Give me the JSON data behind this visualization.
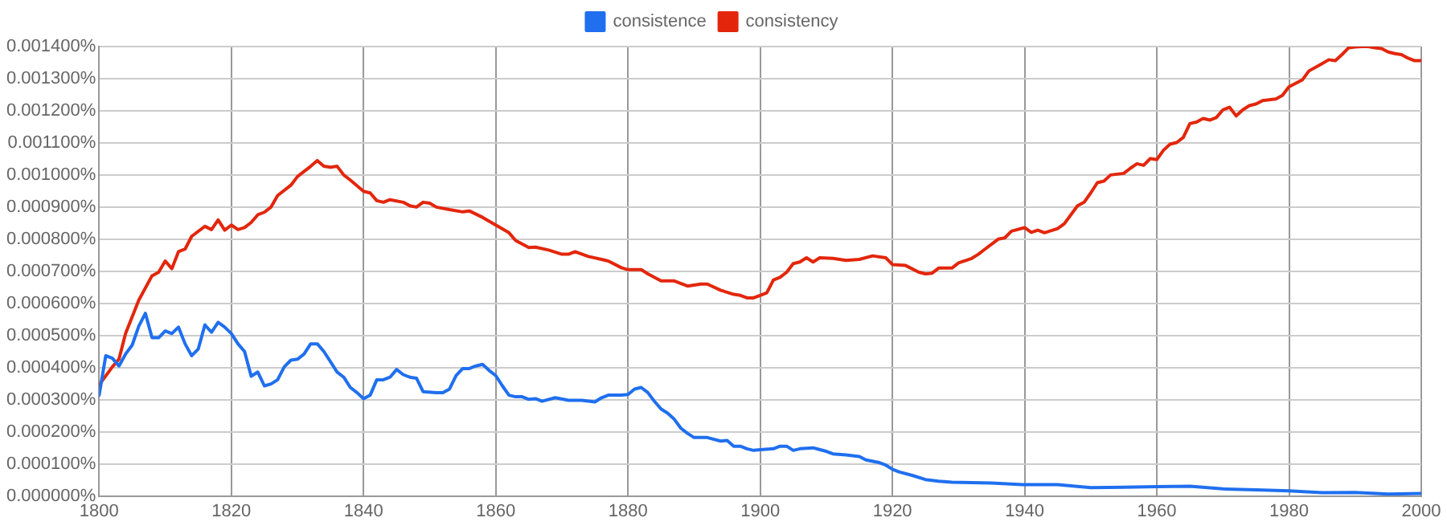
{
  "chart_data": {
    "type": "line",
    "legend": "top",
    "grid": true,
    "marker": "none",
    "line_style": "solid",
    "xlim": [
      1800,
      2000
    ],
    "xticks": [
      1800,
      1820,
      1840,
      1860,
      1880,
      1900,
      1920,
      1940,
      1960,
      1980,
      2000
    ],
    "ylim": [
      0,
      0.0014
    ],
    "yticks": [
      {
        "value": 0,
        "label": "0.000000%"
      },
      {
        "value": 0.0001,
        "label": "0.000100%"
      },
      {
        "value": 0.0002,
        "label": "0.000200%"
      },
      {
        "value": 0.0003,
        "label": "0.000300%"
      },
      {
        "value": 0.0004,
        "label": "0.000400%"
      },
      {
        "value": 0.0005,
        "label": "0.000500%"
      },
      {
        "value": 0.0006,
        "label": "0.000600%"
      },
      {
        "value": 0.0007,
        "label": "0.000700%"
      },
      {
        "value": 0.0008,
        "label": "0.000800%"
      },
      {
        "value": 0.0009,
        "label": "0.000900%"
      },
      {
        "value": 0.001,
        "label": "0.001000%"
      },
      {
        "value": 0.0011,
        "label": "0.001100%"
      },
      {
        "value": 0.0012,
        "label": "0.001200%"
      },
      {
        "value": 0.0013,
        "label": "0.001300%"
      },
      {
        "value": 0.0014,
        "label": "0.001400%"
      }
    ],
    "series": [
      {
        "name": "consistence",
        "color": "#1f6fef",
        "x": [
          1800,
          1801,
          1802,
          1803,
          1804,
          1805,
          1806,
          1807,
          1808,
          1809,
          1810,
          1811,
          1812,
          1813,
          1814,
          1815,
          1816,
          1817,
          1818,
          1819,
          1820,
          1821,
          1822,
          1823,
          1824,
          1825,
          1826,
          1827,
          1828,
          1829,
          1830,
          1831,
          1832,
          1833,
          1834,
          1835,
          1836,
          1837,
          1838,
          1839,
          1840,
          1841,
          1842,
          1843,
          1844,
          1845,
          1846,
          1847,
          1848,
          1849,
          1851,
          1852,
          1853,
          1854,
          1855,
          1856,
          1857,
          1858,
          1859,
          1860,
          1861,
          1862,
          1863,
          1864,
          1865,
          1866,
          1867,
          1869,
          1871,
          1873,
          1875,
          1876,
          1877,
          1879,
          1880,
          1881,
          1882,
          1883,
          1884,
          1885,
          1886,
          1887,
          1888,
          1889,
          1890,
          1892,
          1894,
          1895,
          1896,
          1897,
          1898,
          1899,
          1900,
          1902,
          1903,
          1904,
          1905,
          1906,
          1908,
          1910,
          1911,
          1913,
          1915,
          1916,
          1918,
          1919,
          1920,
          1921,
          1923,
          1925,
          1927,
          1929,
          1935,
          1940,
          1945,
          1950,
          1955,
          1960,
          1965,
          1970,
          1975,
          1980,
          1985,
          1990,
          1995,
          2000
        ],
        "values": [
          0.000314,
          0.000437,
          0.000429,
          0.000405,
          0.000442,
          0.00047,
          0.000529,
          0.000569,
          0.000493,
          0.000493,
          0.000514,
          0.000506,
          0.000526,
          0.000474,
          0.000437,
          0.000458,
          0.000533,
          0.00051,
          0.000541,
          0.000526,
          0.000506,
          0.000474,
          0.00045,
          0.000373,
          0.000386,
          0.000343,
          0.000349,
          0.000362,
          0.000402,
          0.000423,
          0.000426,
          0.000442,
          0.000474,
          0.000474,
          0.00045,
          0.000418,
          0.000386,
          0.00037,
          0.000338,
          0.000322,
          0.000303,
          0.000314,
          0.000362,
          0.000362,
          0.00037,
          0.000394,
          0.000378,
          0.00037,
          0.000367,
          0.000325,
          0.000322,
          0.000322,
          0.000333,
          0.000375,
          0.000397,
          0.000397,
          0.000405,
          0.00041,
          0.000391,
          0.000375,
          0.000343,
          0.000314,
          0.000309,
          0.000309,
          0.000301,
          0.000303,
          0.000295,
          0.000306,
          0.000298,
          0.000298,
          0.000293,
          0.000306,
          0.000314,
          0.000314,
          0.000316,
          0.000333,
          0.000338,
          0.000322,
          0.000295,
          0.000271,
          0.000258,
          0.000239,
          0.000211,
          0.000195,
          0.000182,
          0.000182,
          0.000171,
          0.000173,
          0.000155,
          0.000155,
          0.000147,
          0.000142,
          0.000144,
          0.000147,
          0.000155,
          0.000155,
          0.000142,
          0.000147,
          0.00015,
          0.000139,
          0.000131,
          0.000128,
          0.000123,
          0.000112,
          0.000104,
          9.6e-05,
          8.3e-05,
          7.5e-05,
          6.4e-05,
          5.1e-05,
          4.6e-05,
          4.3e-05,
          4e-05,
          3.5e-05,
          3.5e-05,
          2.6e-05,
          2.7e-05,
          2.9e-05,
          3e-05,
          2.2e-05,
          1.9e-05,
          1.6e-05,
          1e-05,
          1.1e-05,
          6e-06,
          8e-06
        ]
      },
      {
        "name": "consistency",
        "color": "#e3260b",
        "x": [
          1800,
          1802,
          1803,
          1804,
          1806,
          1808,
          1809,
          1810,
          1811,
          1812,
          1813,
          1814,
          1816,
          1817,
          1818,
          1819,
          1820,
          1821,
          1822,
          1823,
          1824,
          1825,
          1826,
          1827,
          1829,
          1830,
          1832,
          1833,
          1834,
          1835,
          1836,
          1837,
          1838,
          1840,
          1841,
          1842,
          1843,
          1844,
          1846,
          1847,
          1848,
          1849,
          1850,
          1851,
          1853,
          1855,
          1856,
          1858,
          1860,
          1862,
          1863,
          1865,
          1866,
          1868,
          1870,
          1871,
          1872,
          1874,
          1876,
          1877,
          1879,
          1880,
          1882,
          1883,
          1885,
          1887,
          1889,
          1891,
          1892,
          1894,
          1896,
          1897,
          1898,
          1899,
          1900,
          1901,
          1902,
          1903,
          1904,
          1905,
          1906,
          1907,
          1908,
          1909,
          1911,
          1913,
          1915,
          1917,
          1919,
          1920,
          1922,
          1924,
          1925,
          1926,
          1927,
          1929,
          1930,
          1932,
          1933,
          1934,
          1936,
          1937,
          1938,
          1940,
          1941,
          1942,
          1943,
          1945,
          1946,
          1948,
          1949,
          1950,
          1951,
          1952,
          1953,
          1955,
          1956,
          1957,
          1958,
          1959,
          1960,
          1961,
          1962,
          1963,
          1964,
          1965,
          1966,
          1967,
          1968,
          1969,
          1970,
          1971,
          1972,
          1973,
          1974,
          1975,
          1976,
          1978,
          1979,
          1980,
          1982,
          1983,
          1985,
          1986,
          1987,
          1988,
          1989,
          1990,
          1991,
          1992,
          1993,
          1994,
          1995,
          1996,
          1997,
          1998,
          1999,
          2000
        ],
        "values": [
          0.000346,
          0.000402,
          0.000426,
          0.000506,
          0.00061,
          0.000686,
          0.000697,
          0.000732,
          0.000708,
          0.000761,
          0.000769,
          0.000809,
          0.00084,
          0.00083,
          0.00086,
          0.000828,
          0.000844,
          0.00083,
          0.000836,
          0.000852,
          0.000876,
          0.000884,
          0.0009,
          0.000936,
          0.000968,
          0.000995,
          0.001027,
          0.001045,
          0.001027,
          0.001024,
          0.001027,
          0.001,
          0.000984,
          0.000949,
          0.000944,
          0.00092,
          0.000915,
          0.000923,
          0.000915,
          0.000904,
          0.0009,
          0.000915,
          0.000912,
          0.0009,
          0.000892,
          0.000885,
          0.000888,
          0.000868,
          0.000844,
          0.00082,
          0.000796,
          0.000774,
          0.000775,
          0.000766,
          0.000753,
          0.000753,
          0.000761,
          0.000746,
          0.000737,
          0.000732,
          0.000711,
          0.000705,
          0.000705,
          0.000692,
          0.00067,
          0.00067,
          0.000654,
          0.00066,
          0.00066,
          0.000641,
          0.000628,
          0.000625,
          0.000617,
          0.000617,
          0.000625,
          0.000633,
          0.000673,
          0.000681,
          0.000697,
          0.000724,
          0.000729,
          0.000742,
          0.000729,
          0.000742,
          0.00074,
          0.000734,
          0.000737,
          0.000748,
          0.000742,
          0.000721,
          0.000718,
          0.000697,
          0.000692,
          0.000694,
          0.00071,
          0.00071,
          0.000726,
          0.00074,
          0.000753,
          0.000769,
          0.0008,
          0.000804,
          0.000825,
          0.000836,
          0.000821,
          0.000828,
          0.00082,
          0.000833,
          0.000848,
          0.000904,
          0.000915,
          0.000944,
          0.000976,
          0.000981,
          0.001,
          0.001005,
          0.001021,
          0.001035,
          0.00103,
          0.001051,
          0.001048,
          0.001077,
          0.001096,
          0.001101,
          0.001117,
          0.00116,
          0.001165,
          0.001176,
          0.001171,
          0.001179,
          0.001203,
          0.001211,
          0.001184,
          0.001203,
          0.001216,
          0.001221,
          0.001232,
          0.001237,
          0.001248,
          0.001275,
          0.001296,
          0.001324,
          0.001347,
          0.001359,
          0.001356,
          0.001375,
          0.001396,
          0.001399,
          0.0014,
          0.0014,
          0.001396,
          0.001394,
          0.001383,
          0.001378,
          0.001375,
          0.001364,
          0.001356,
          0.001356
        ]
      }
    ]
  }
}
